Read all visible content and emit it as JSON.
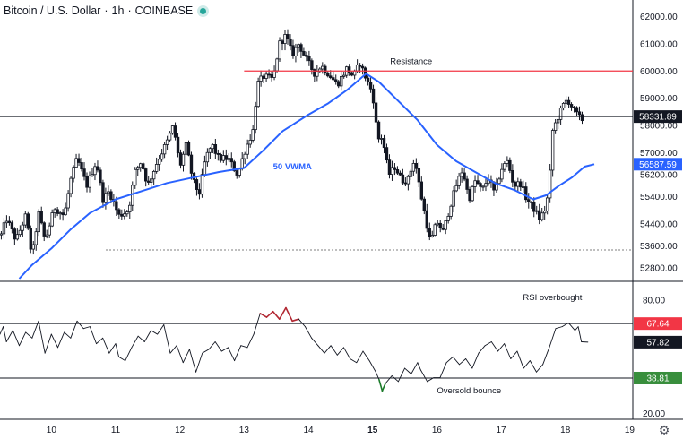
{
  "header": {
    "symbol": "Bitcoin / U.S. Dollar",
    "interval": "1h",
    "exchange": "COINBASE",
    "live_color": "#26a69a"
  },
  "icons": {
    "settings": "gear-icon"
  },
  "colors": {
    "candle": "#131722",
    "vwma": "#2962ff",
    "resistance": "#f23645",
    "rsi_line": "#131722",
    "rsi_overbought": "#b22833",
    "rsi_oversold": "#1b7a2a",
    "badge_price": "#131722",
    "badge_vwma": "#2962ff",
    "badge_overbought": "#f23645",
    "badge_oversold": "#388e3c"
  },
  "chart_data": [
    {
      "type": "candlestick",
      "panel": "price",
      "y_axis": {
        "ticks": [
          "62000.00",
          "61000.00",
          "60000.00",
          "59000.00",
          "58000.00",
          "57000.00",
          "56200.00",
          "55400.00",
          "54400.00",
          "53600.00",
          "52800.00"
        ],
        "tick_values": [
          62000,
          61000,
          60000,
          59000,
          58000,
          57000,
          56200,
          55400,
          54400,
          53600,
          52800
        ],
        "range": [
          52300,
          62600
        ]
      },
      "x_axis": {
        "ticks": [
          "10",
          "11",
          "12",
          "13",
          "14",
          "15",
          "16",
          "17",
          "18",
          "19"
        ],
        "range": [
          9.2,
          19.05
        ],
        "bold_tick": "15"
      },
      "anchors": [
        [
          9.22,
          54000
        ],
        [
          9.3,
          54600
        ],
        [
          9.45,
          53800
        ],
        [
          9.6,
          54700
        ],
        [
          9.7,
          53200
        ],
        [
          9.8,
          54800
        ],
        [
          9.9,
          53800
        ],
        [
          10.05,
          55000
        ],
        [
          10.2,
          54700
        ],
        [
          10.3,
          56000
        ],
        [
          10.4,
          56800
        ],
        [
          10.55,
          55800
        ],
        [
          10.7,
          56700
        ],
        [
          10.8,
          55300
        ],
        [
          10.9,
          55600
        ],
        [
          11.05,
          54700
        ],
        [
          11.2,
          54900
        ],
        [
          11.3,
          56300
        ],
        [
          11.4,
          56700
        ],
        [
          11.5,
          55800
        ],
        [
          11.65,
          56700
        ],
        [
          11.8,
          57400
        ],
        [
          11.9,
          58000
        ],
        [
          12.0,
          56500
        ],
        [
          12.1,
          57300
        ],
        [
          12.2,
          56000
        ],
        [
          12.3,
          55500
        ],
        [
          12.4,
          56800
        ],
        [
          12.5,
          57300
        ],
        [
          12.6,
          56800
        ],
        [
          12.75,
          56800
        ],
        [
          12.9,
          56200
        ],
        [
          13.0,
          57000
        ],
        [
          13.15,
          57900
        ],
        [
          13.2,
          59500
        ],
        [
          13.3,
          59800
        ],
        [
          13.45,
          59700
        ],
        [
          13.55,
          61000
        ],
        [
          13.65,
          61300
        ],
        [
          13.75,
          60600
        ],
        [
          13.85,
          61000
        ],
        [
          13.95,
          60500
        ],
        [
          14.1,
          59900
        ],
        [
          14.2,
          60200
        ],
        [
          14.35,
          59800
        ],
        [
          14.45,
          59500
        ],
        [
          14.6,
          60100
        ],
        [
          14.7,
          59800
        ],
        [
          14.8,
          60300
        ],
        [
          14.92,
          59600
        ],
        [
          15.0,
          59200
        ],
        [
          15.08,
          57500
        ],
        [
          15.15,
          57600
        ],
        [
          15.25,
          56200
        ],
        [
          15.35,
          56500
        ],
        [
          15.45,
          56000
        ],
        [
          15.55,
          56000
        ],
        [
          15.65,
          56800
        ],
        [
          15.75,
          55500
        ],
        [
          15.85,
          54300
        ],
        [
          15.9,
          53700
        ],
        [
          16.0,
          54500
        ],
        [
          16.1,
          54100
        ],
        [
          16.2,
          55000
        ],
        [
          16.3,
          55800
        ],
        [
          16.4,
          56400
        ],
        [
          16.5,
          55300
        ],
        [
          16.6,
          56000
        ],
        [
          16.7,
          55600
        ],
        [
          16.8,
          56100
        ],
        [
          16.9,
          55500
        ],
        [
          17.0,
          56400
        ],
        [
          17.1,
          56700
        ],
        [
          17.2,
          55800
        ],
        [
          17.3,
          55900
        ],
        [
          17.4,
          55300
        ],
        [
          17.5,
          55000
        ],
        [
          17.6,
          54600
        ],
        [
          17.7,
          55000
        ],
        [
          17.75,
          55800
        ],
        [
          17.8,
          57800
        ],
        [
          17.9,
          58400
        ],
        [
          18.0,
          58900
        ],
        [
          18.05,
          58900
        ],
        [
          18.15,
          58500
        ],
        [
          18.25,
          58200
        ],
        [
          18.3,
          58331.89
        ]
      ],
      "vwma": {
        "label": "50 VWMA",
        "points": [
          [
            9.5,
            52400
          ],
          [
            9.7,
            52900
          ],
          [
            10.0,
            53500
          ],
          [
            10.3,
            54200
          ],
          [
            10.6,
            54800
          ],
          [
            11.0,
            55300
          ],
          [
            11.4,
            55600
          ],
          [
            11.8,
            55900
          ],
          [
            12.2,
            56100
          ],
          [
            12.6,
            56300
          ],
          [
            13.0,
            56450
          ],
          [
            13.3,
            57100
          ],
          [
            13.6,
            57800
          ],
          [
            14.0,
            58400
          ],
          [
            14.3,
            58800
          ],
          [
            14.6,
            59300
          ],
          [
            14.9,
            59900
          ],
          [
            15.1,
            59600
          ],
          [
            15.4,
            58900
          ],
          [
            15.7,
            58200
          ],
          [
            16.0,
            57300
          ],
          [
            16.3,
            56700
          ],
          [
            16.6,
            56300
          ],
          [
            16.9,
            55900
          ],
          [
            17.2,
            55650
          ],
          [
            17.5,
            55300
          ],
          [
            17.7,
            55450
          ],
          [
            17.9,
            55800
          ],
          [
            18.1,
            56100
          ],
          [
            18.3,
            56500
          ],
          [
            18.45,
            56587.59
          ]
        ]
      },
      "resistance": {
        "label": "Resistance",
        "value": 60000,
        "x_start": 13.0
      },
      "current_price": 58331.89,
      "support_dotted": {
        "value": 53450,
        "x_start": 10.85
      },
      "badges": [
        {
          "name": "price-badge",
          "text": "58331.89",
          "value": 58331.89,
          "color": "#131722"
        },
        {
          "name": "vwma-badge",
          "text": "56587.59",
          "value": 56587.59,
          "color": "#2962ff"
        }
      ]
    },
    {
      "type": "line",
      "panel": "rsi",
      "y_axis": {
        "ticks": [
          "80.00",
          "20.00"
        ],
        "tick_values": [
          80,
          20
        ],
        "range": [
          17,
          90
        ]
      },
      "overbought": {
        "value": 67.64,
        "label": "RSI overbought"
      },
      "oversold": {
        "value": 38.81,
        "label": "Oversold bounce"
      },
      "current": 57.82,
      "points": [
        [
          9.2,
          62
        ],
        [
          9.25,
          66
        ],
        [
          9.3,
          58
        ],
        [
          9.4,
          64
        ],
        [
          9.5,
          56
        ],
        [
          9.6,
          63
        ],
        [
          9.7,
          60
        ],
        [
          9.8,
          69
        ],
        [
          9.9,
          52
        ],
        [
          10.0,
          62
        ],
        [
          10.1,
          55
        ],
        [
          10.2,
          63
        ],
        [
          10.3,
          60
        ],
        [
          10.4,
          69
        ],
        [
          10.5,
          65
        ],
        [
          10.6,
          66
        ],
        [
          10.7,
          57
        ],
        [
          10.8,
          60
        ],
        [
          10.9,
          52
        ],
        [
          11.0,
          57
        ],
        [
          11.05,
          50
        ],
        [
          11.15,
          48
        ],
        [
          11.25,
          55
        ],
        [
          11.35,
          61
        ],
        [
          11.45,
          58
        ],
        [
          11.55,
          64
        ],
        [
          11.65,
          62
        ],
        [
          11.75,
          67
        ],
        [
          11.85,
          52
        ],
        [
          11.95,
          56
        ],
        [
          12.05,
          47
        ],
        [
          12.15,
          54
        ],
        [
          12.25,
          42
        ],
        [
          12.35,
          52
        ],
        [
          12.45,
          54
        ],
        [
          12.55,
          58
        ],
        [
          12.65,
          53
        ],
        [
          12.75,
          55
        ],
        [
          12.85,
          48
        ],
        [
          12.95,
          56
        ],
        [
          13.05,
          55
        ],
        [
          13.15,
          62
        ],
        [
          13.25,
          73
        ],
        [
          13.35,
          71
        ],
        [
          13.45,
          74
        ],
        [
          13.55,
          70
        ],
        [
          13.65,
          76
        ],
        [
          13.75,
          69
        ],
        [
          13.85,
          70
        ],
        [
          13.95,
          66
        ],
        [
          14.05,
          60
        ],
        [
          14.15,
          56
        ],
        [
          14.25,
          52
        ],
        [
          14.35,
          56
        ],
        [
          14.45,
          51
        ],
        [
          14.55,
          55
        ],
        [
          14.65,
          49
        ],
        [
          14.75,
          47
        ],
        [
          14.85,
          53
        ],
        [
          14.95,
          48
        ],
        [
          15.05,
          42
        ],
        [
          15.1,
          38
        ],
        [
          15.15,
          32
        ],
        [
          15.2,
          36
        ],
        [
          15.3,
          40
        ],
        [
          15.4,
          37
        ],
        [
          15.5,
          44
        ],
        [
          15.6,
          41
        ],
        [
          15.7,
          47
        ],
        [
          15.75,
          43
        ],
        [
          15.85,
          37
        ],
        [
          15.95,
          39
        ],
        [
          16.05,
          39
        ],
        [
          16.15,
          47
        ],
        [
          16.25,
          50
        ],
        [
          16.35,
          46
        ],
        [
          16.45,
          49
        ],
        [
          16.55,
          44
        ],
        [
          16.65,
          52
        ],
        [
          16.75,
          56
        ],
        [
          16.85,
          58
        ],
        [
          16.95,
          53
        ],
        [
          17.05,
          57
        ],
        [
          17.15,
          49
        ],
        [
          17.25,
          53
        ],
        [
          17.35,
          44
        ],
        [
          17.45,
          48
        ],
        [
          17.55,
          42
        ],
        [
          17.65,
          46
        ],
        [
          17.75,
          55
        ],
        [
          17.85,
          65
        ],
        [
          17.95,
          66
        ],
        [
          18.05,
          68
        ],
        [
          18.15,
          64
        ],
        [
          18.2,
          66
        ],
        [
          18.25,
          58
        ],
        [
          18.35,
          57.82
        ]
      ],
      "badges": [
        {
          "name": "rsi-overbought-badge",
          "text": "67.64",
          "value": 67.64,
          "color": "#f23645"
        },
        {
          "name": "rsi-current-badge",
          "text": "57.82",
          "value": 57.82,
          "color": "#131722"
        },
        {
          "name": "rsi-oversold-badge",
          "text": "38.81",
          "value": 38.81,
          "color": "#388e3c"
        }
      ]
    }
  ]
}
